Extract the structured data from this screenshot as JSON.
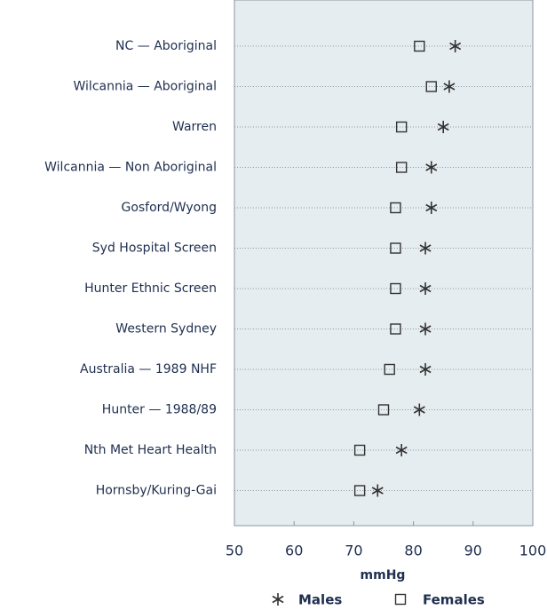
{
  "chart_data": {
    "type": "dot",
    "categories": [
      "NC — Aboriginal",
      "Wilcannia — Aboriginal",
      "Warren",
      "Wilcannia — Non Aboriginal",
      "Gosford/Wyong",
      "Syd Hospital Screen",
      "Hunter Ethnic Screen",
      "Western Sydney",
      "Australia — 1989 NHF",
      "Hunter — 1988/89",
      "Nth Met Heart Health",
      "Hornsby/Kuring-Gai"
    ],
    "series": [
      {
        "name": "Males",
        "color": "#333333",
        "values": [
          87,
          86,
          85,
          83,
          83,
          82,
          82,
          82,
          82,
          81,
          78,
          74
        ]
      },
      {
        "name": "Females",
        "color": "#333333",
        "values": [
          81,
          83,
          78,
          78,
          77,
          77,
          77,
          77,
          76,
          75,
          71,
          71
        ]
      }
    ],
    "xlabel": "mmHg",
    "xlim": [
      50,
      100
    ],
    "xticks": [
      50,
      60,
      70,
      80,
      90,
      100
    ],
    "grid": true
  }
}
